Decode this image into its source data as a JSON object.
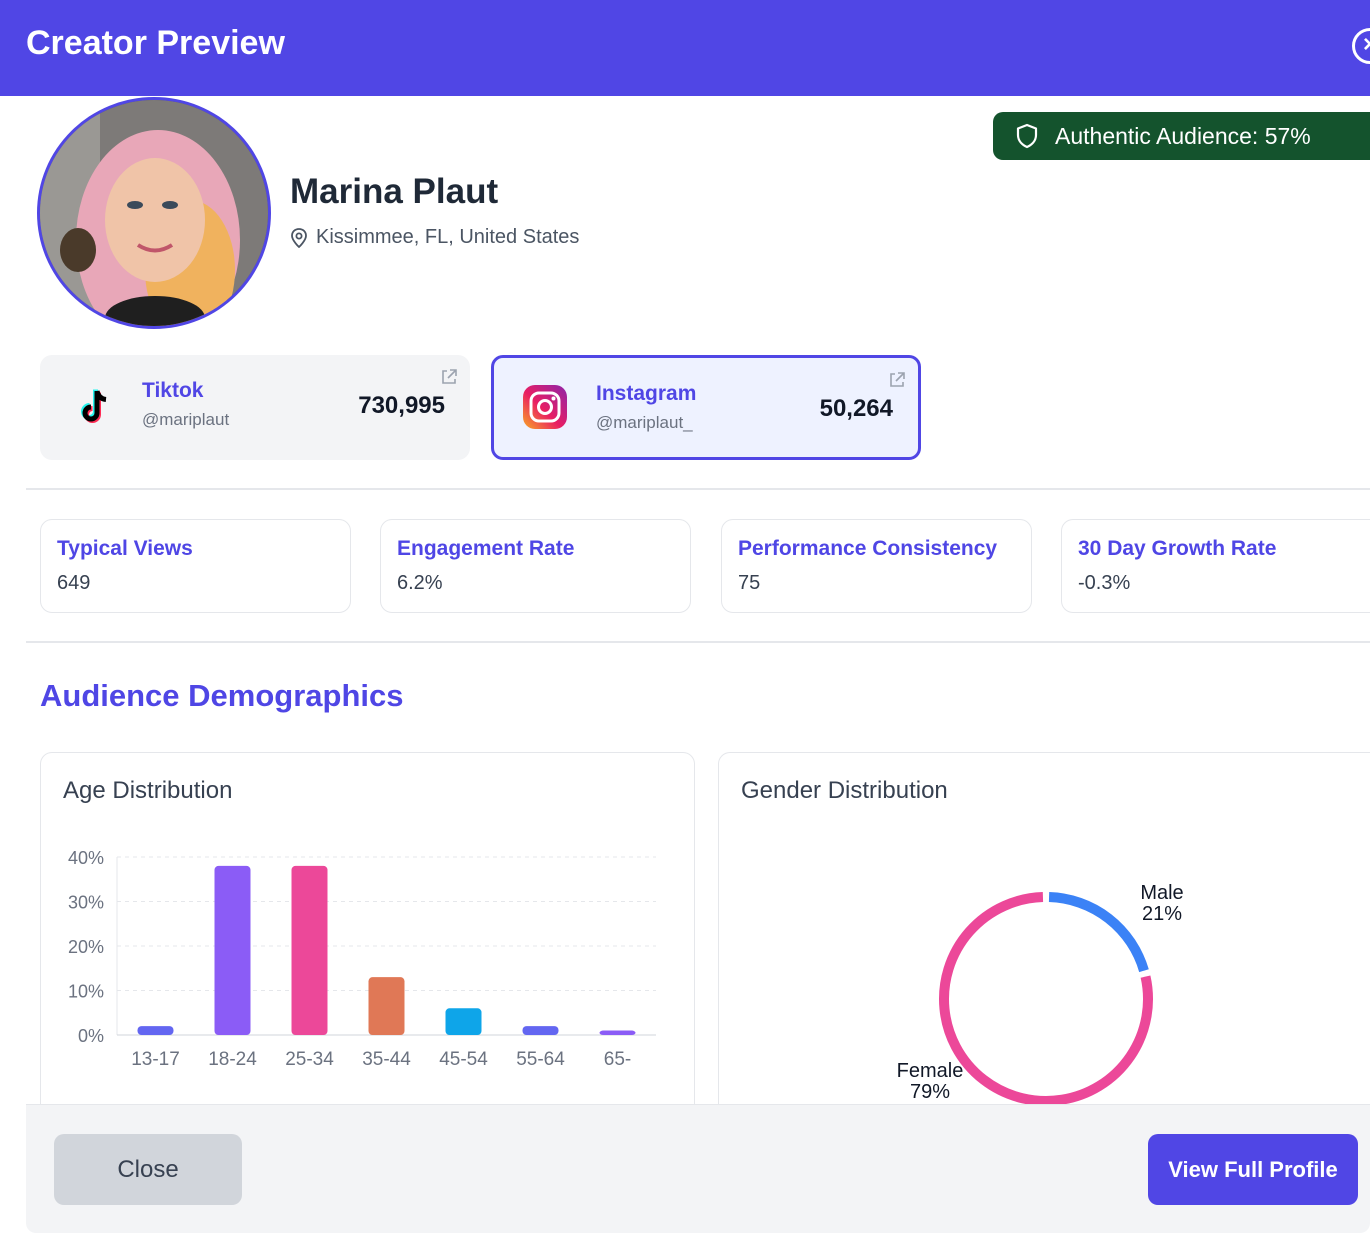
{
  "header": {
    "title": "Creator Preview"
  },
  "creator": {
    "name": "Marina Plaut",
    "location": "Kissimmee, FL, United States",
    "authentic_audience": "Authentic Audience: 57%"
  },
  "socials": [
    {
      "platform": "Tiktok",
      "handle": "@mariplaut",
      "followers": "730,995",
      "selected": false
    },
    {
      "platform": "Instagram",
      "handle": "@mariplaut_",
      "followers": "50,264",
      "selected": true
    }
  ],
  "metrics": [
    {
      "label": "Typical Views",
      "value": "649"
    },
    {
      "label": "Engagement Rate",
      "value": "6.2%"
    },
    {
      "label": "Performance Consistency",
      "value": "75"
    },
    {
      "label": "30 Day Growth Rate",
      "value": "-0.3%"
    }
  ],
  "demographics": {
    "title": "Audience Demographics",
    "age_title": "Age Distribution",
    "gender_title": "Gender Distribution"
  },
  "chart_data": [
    {
      "type": "bar",
      "title": "Age Distribution",
      "categories": [
        "13-17",
        "18-24",
        "25-34",
        "35-44",
        "45-54",
        "55-64",
        "65-"
      ],
      "values": [
        2,
        38,
        38,
        13,
        6,
        2,
        1
      ],
      "ylim": [
        0,
        40
      ],
      "yticks": [
        "0%",
        "10%",
        "20%",
        "30%",
        "40%"
      ],
      "colors": [
        "#6366f1",
        "#8b5cf6",
        "#ec4899",
        "#e07856",
        "#0ea5e9",
        "#6366f1",
        "#8b5cf6"
      ],
      "grid": true
    },
    {
      "type": "pie",
      "title": "Gender Distribution",
      "labels": [
        "Male",
        "Female"
      ],
      "values": [
        21,
        79
      ],
      "value_labels": [
        "21%",
        "79%"
      ],
      "colors": [
        "#3b82f6",
        "#ec4899"
      ]
    }
  ],
  "footer": {
    "close_label": "Close",
    "view_label": "View Full Profile"
  },
  "colors": {
    "primary": "#5046e5",
    "badge": "#14532d"
  }
}
